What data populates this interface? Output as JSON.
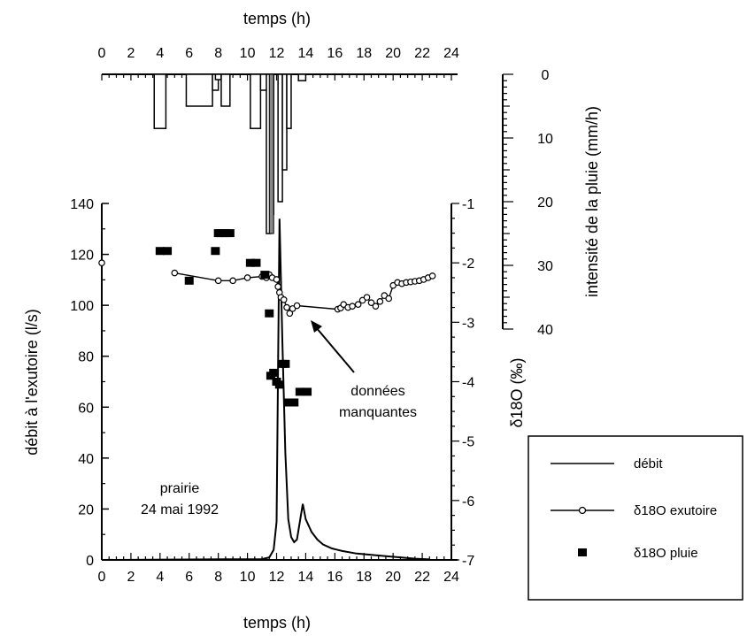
{
  "chart_data": {
    "type": "line",
    "axes": {
      "bottom": {
        "label": "temps (h)",
        "range": [
          0,
          24
        ],
        "ticks": [
          "0",
          "2",
          "4",
          "6",
          "8",
          "10",
          "12",
          "14",
          "16",
          "18",
          "20",
          "22",
          "24"
        ]
      },
      "top": {
        "label": "temps (h)",
        "range": [
          0,
          24
        ],
        "ticks": [
          "0",
          "2",
          "4",
          "6",
          "8",
          "10",
          "12",
          "14",
          "16",
          "18",
          "20",
          "22",
          "24"
        ]
      },
      "left": {
        "label": "débit à l'exutoire (l/s)",
        "range": [
          0,
          140
        ],
        "ticks": [
          "0",
          "20",
          "40",
          "60",
          "80",
          "100",
          "120",
          "140"
        ]
      },
      "right_delta": {
        "label": "δ18O (‰)",
        "range": [
          -7,
          -1
        ],
        "ticks": [
          "-1",
          "-2",
          "-3",
          "-4",
          "-5",
          "-6",
          "-7"
        ]
      },
      "right_rain": {
        "label": "intensité de la pluie (mm/h)",
        "range": [
          0,
          40
        ],
        "inverted": true,
        "ticks": [
          "0",
          "10",
          "20",
          "30",
          "40"
        ]
      }
    },
    "annotations": {
      "site": "prairie",
      "date": "24 mai 1992",
      "missing_line1": "données",
      "missing_line2": "manquantes"
    },
    "legend": {
      "debit": "débit",
      "exutoire": "δ18O exutoire",
      "pluie": "δ18O pluie",
      "placement": "bottom-right"
    },
    "rain_intensity": [
      {
        "t0": 3.6,
        "t1": 4.4,
        "v": 8.5
      },
      {
        "t0": 5.8,
        "t1": 7.6,
        "v": 5
      },
      {
        "t0": 7.6,
        "t1": 8.0,
        "v": 2.5
      },
      {
        "t0": 7.8,
        "t1": 8.2,
        "v": 0
      },
      {
        "t0": 8.2,
        "t1": 8.8,
        "v": 5
      },
      {
        "t0": 10.2,
        "t1": 10.9,
        "v": 8.5
      },
      {
        "t0": 10.9,
        "t1": 11.4,
        "v": 2.5
      },
      {
        "t0": 11.3,
        "t1": 11.6,
        "v": 25
      },
      {
        "t0": 11.6,
        "t1": 11.8,
        "v": 22
      },
      {
        "t0": 12.1,
        "t1": 12.4,
        "v": 20
      },
      {
        "t0": 12.4,
        "t1": 12.7,
        "v": 15
      },
      {
        "t0": 12.7,
        "t1": 13.0,
        "v": 8.5
      },
      {
        "t0": 13.5,
        "t1": 14.0,
        "v": 1
      }
    ],
    "series": [
      {
        "name": "débit",
        "x": [
          0,
          11.0,
          11.5,
          11.8,
          12.0,
          12.2,
          12.4,
          12.6,
          12.8,
          13.0,
          13.2,
          13.4,
          13.6,
          13.8,
          14.0,
          14.4,
          14.8,
          15.2,
          15.8,
          16.5,
          17.5,
          18.5,
          19.5,
          20.5,
          21.5,
          22.5
        ],
        "y": [
          0,
          0.3,
          1,
          4,
          15,
          134,
          85,
          42,
          16,
          9,
          7,
          8,
          15,
          22,
          16,
          11,
          8,
          6,
          4.5,
          3.5,
          2.5,
          2,
          1.5,
          1,
          0.5,
          0.2
        ]
      },
      {
        "name": "δ18O exutoire",
        "x": [
          0,
          5,
          8,
          9,
          10,
          11,
          11.3,
          11.5,
          11.7,
          12.0,
          12.1,
          12.2,
          12.3,
          12.5,
          12.7,
          12.9,
          13.1,
          13.4,
          16.2,
          16.4,
          16.6,
          16.9,
          17.2,
          17.6,
          17.9,
          18.2,
          18.5,
          18.8,
          19.1,
          19.4,
          19.7,
          20.0,
          20.3,
          20.6,
          20.9,
          21.2,
          21.5,
          21.8,
          22.1,
          22.4,
          22.7
        ],
        "y": [
          -2.0,
          -2.17,
          -2.3,
          -2.3,
          -2.25,
          -2.23,
          -2.25,
          -2.2,
          -2.25,
          -2.28,
          -2.4,
          -2.5,
          -2.58,
          -2.62,
          -2.75,
          -2.85,
          -2.77,
          -2.72,
          -2.78,
          -2.76,
          -2.7,
          -2.75,
          -2.73,
          -2.7,
          -2.63,
          -2.58,
          -2.67,
          -2.73,
          -2.65,
          -2.55,
          -2.6,
          -2.38,
          -2.33,
          -2.35,
          -2.33,
          -2.32,
          -2.31,
          -2.3,
          -2.28,
          -2.25,
          -2.22
        ]
      },
      {
        "name": "δ18O pluie",
        "x": [
          4.0,
          4.5,
          6.0,
          7.8,
          8.0,
          8.2,
          8.5,
          8.8,
          10.2,
          10.6,
          11.2,
          11.5,
          11.6,
          11.8,
          12.0,
          12.2,
          12.4,
          12.6,
          12.8,
          13.2,
          13.6,
          14.1
        ],
        "y": [
          -1.8,
          -1.8,
          -2.3,
          -1.8,
          -1.5,
          -1.5,
          -1.5,
          -1.5,
          -2.0,
          -2.0,
          -2.2,
          -2.85,
          -3.9,
          -3.85,
          -4.0,
          -4.05,
          -3.7,
          -3.7,
          -4.35,
          -4.35,
          -4.17,
          -4.17
        ]
      }
    ]
  }
}
